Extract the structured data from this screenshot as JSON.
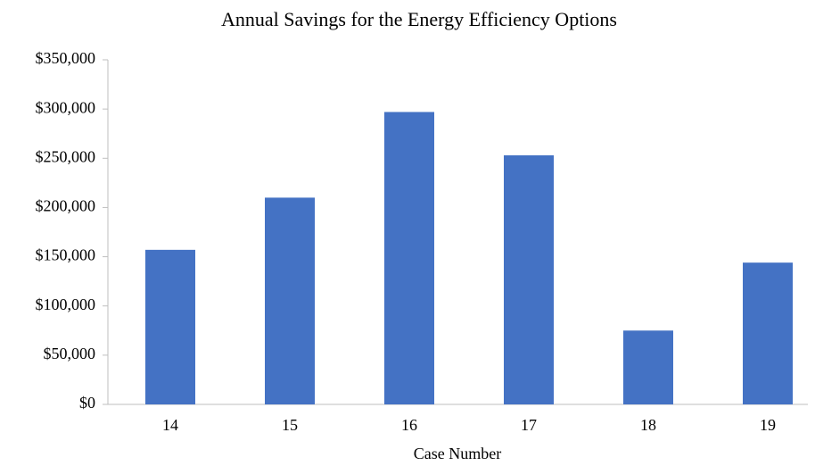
{
  "chart_data": {
    "type": "bar",
    "title": "Annual Savings for the Energy Efficiency Options",
    "x_label": "Case Number",
    "categories": [
      "14",
      "15",
      "16",
      "17",
      "18",
      "19"
    ],
    "values": [
      157000,
      210000,
      297000,
      253000,
      75000,
      144000
    ],
    "color": "#4472c4",
    "ylim": [
      0,
      350000
    ],
    "yticks": [
      {
        "value": 0,
        "label": "$0"
      },
      {
        "value": 50000,
        "label": "$50,000"
      },
      {
        "value": 100000,
        "label": "$100,000"
      },
      {
        "value": 150000,
        "label": "$150,000"
      },
      {
        "value": 200000,
        "label": "$200,000"
      },
      {
        "value": 250000,
        "label": "$250,000"
      },
      {
        "value": 300000,
        "label": "$300,000"
      },
      {
        "value": 350000,
        "label": "$350,000"
      }
    ],
    "grid": false
  }
}
